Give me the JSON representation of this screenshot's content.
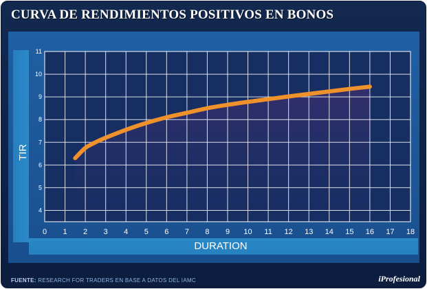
{
  "title": "CURVA DE RENDIMIENTOS POSITIVOS EN BONOS",
  "footer": {
    "label": "FUENTE:",
    "text": "RESEARCH FOR TRADERS EN BASE A DATOS DEL IAMC"
  },
  "logo": "iProfesional",
  "colors": {
    "background": "#13294f",
    "panel": "#1f5fa3",
    "plot_area": "#172e63",
    "curve": "#f0922b",
    "grid": "#ffffff"
  },
  "chart_data": {
    "type": "line",
    "xlabel": "DURATION",
    "ylabel": "TIR",
    "xlim": [
      0,
      18
    ],
    "ylim": [
      3.5,
      11
    ],
    "x_ticks": [
      "0",
      "1",
      "2",
      "3",
      "4",
      "5",
      "6",
      "7",
      "8",
      "9",
      "10",
      "11",
      "12",
      "13",
      "14",
      "15",
      "16",
      "17",
      "18"
    ],
    "y_ticks": [
      "4",
      "5",
      "6",
      "7",
      "8",
      "9",
      "10",
      "11"
    ],
    "grid": true,
    "area_fill": true,
    "series": [
      {
        "x": [
          1.5,
          2,
          2.5,
          3,
          4,
          5,
          6,
          7,
          8,
          9,
          10,
          11,
          12,
          13,
          14,
          15,
          16
        ],
        "y": [
          6.3,
          6.75,
          7.0,
          7.2,
          7.55,
          7.85,
          8.1,
          8.3,
          8.5,
          8.65,
          8.78,
          8.9,
          9.02,
          9.13,
          9.24,
          9.35,
          9.45
        ]
      }
    ]
  }
}
